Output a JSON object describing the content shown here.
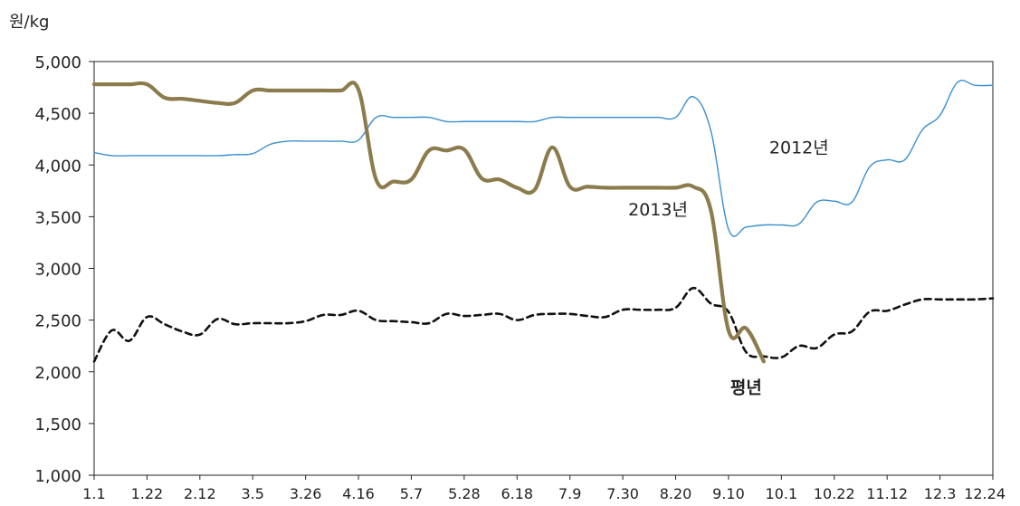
{
  "chart_data": {
    "type": "line",
    "title": "",
    "xlabel": "",
    "ylabel": "원/kg",
    "ylim": [
      1000,
      5000
    ],
    "y_ticks": [
      1000,
      1500,
      2000,
      2500,
      3000,
      3500,
      4000,
      4500,
      5000
    ],
    "y_tick_labels": [
      "1,000",
      "1,500",
      "2,000",
      "2,500",
      "3,000",
      "3,500",
      "4,000",
      "4,500",
      "5,000"
    ],
    "x_tick_labels": [
      "1.1",
      "1.22",
      "2.12",
      "3.5",
      "3.26",
      "4.16",
      "5.7",
      "5.28",
      "6.18",
      "7.9",
      "7.30",
      "8.20",
      "9.10",
      "10.1",
      "10.22",
      "11.12",
      "12.3",
      "12.24"
    ],
    "x_count": 52,
    "grid": false,
    "legend": "none",
    "series": [
      {
        "name": "2012년",
        "color": "#3a8fd0",
        "style": "solid-thin",
        "x": [
          0,
          1,
          2,
          3,
          4,
          5,
          6,
          7,
          8,
          9,
          10,
          11,
          12,
          13,
          14,
          15,
          16,
          17,
          18,
          19,
          20,
          21,
          22,
          23,
          24,
          25,
          26,
          27,
          28,
          29,
          30,
          31,
          32,
          33,
          34,
          35,
          36,
          37,
          38,
          39,
          40,
          41,
          42,
          43,
          44,
          45,
          46,
          47,
          48,
          49,
          50,
          51
        ],
        "values": [
          4120,
          4090,
          4090,
          4090,
          4090,
          4090,
          4090,
          4090,
          4100,
          4110,
          4200,
          4230,
          4230,
          4230,
          4230,
          4240,
          4460,
          4460,
          4460,
          4460,
          4420,
          4420,
          4420,
          4420,
          4420,
          4420,
          4460,
          4460,
          4460,
          4460,
          4460,
          4460,
          4460,
          4460,
          4660,
          4330,
          3380,
          3400,
          3420,
          3420,
          3430,
          3640,
          3650,
          3640,
          3980,
          4050,
          4050,
          4340,
          4480,
          4800,
          4770,
          4770
        ]
      },
      {
        "name": "2013년",
        "color": "#8c7c4d",
        "style": "solid-thick",
        "x": [
          0,
          1,
          2,
          3,
          4,
          5,
          6,
          7,
          8,
          9,
          10,
          11,
          12,
          13,
          14,
          15,
          16,
          17,
          18,
          19,
          20,
          21,
          22,
          23,
          24,
          25,
          26,
          27,
          28,
          29,
          30,
          31,
          32,
          33,
          34,
          35,
          36,
          37,
          38
        ],
        "values": [
          4780,
          4780,
          4780,
          4780,
          4650,
          4640,
          4620,
          4600,
          4600,
          4720,
          4720,
          4720,
          4720,
          4720,
          4720,
          4730,
          3860,
          3840,
          3860,
          4140,
          4140,
          4150,
          3870,
          3860,
          3780,
          3760,
          4170,
          3790,
          3790,
          3780,
          3780,
          3780,
          3780,
          3780,
          3790,
          3560,
          2400,
          2420,
          2100
        ]
      },
      {
        "name": "평년",
        "color": "#111111",
        "style": "dashed",
        "x": [
          0,
          1,
          2,
          3,
          4,
          5,
          6,
          7,
          8,
          9,
          10,
          11,
          12,
          13,
          14,
          15,
          16,
          17,
          18,
          19,
          20,
          21,
          22,
          23,
          24,
          25,
          26,
          27,
          28,
          29,
          30,
          31,
          32,
          33,
          34,
          35,
          36,
          37,
          38,
          39,
          40,
          41,
          42,
          43,
          44,
          45,
          46,
          47,
          48,
          49,
          50,
          51
        ],
        "values": [
          2100,
          2400,
          2300,
          2530,
          2460,
          2390,
          2360,
          2510,
          2460,
          2470,
          2470,
          2470,
          2490,
          2550,
          2550,
          2590,
          2500,
          2490,
          2480,
          2470,
          2560,
          2540,
          2550,
          2560,
          2500,
          2550,
          2560,
          2560,
          2540,
          2530,
          2600,
          2600,
          2600,
          2620,
          2810,
          2660,
          2580,
          2190,
          2150,
          2140,
          2250,
          2230,
          2360,
          2390,
          2580,
          2590,
          2650,
          2700,
          2700,
          2700,
          2700,
          2710
        ]
      }
    ],
    "annotations": [
      {
        "text": "2012년",
        "x": 40,
        "y": 4110
      },
      {
        "text": "2013년",
        "x": 32,
        "y": 3510
      },
      {
        "text": "평년",
        "x": 37,
        "y": 1790
      }
    ]
  }
}
